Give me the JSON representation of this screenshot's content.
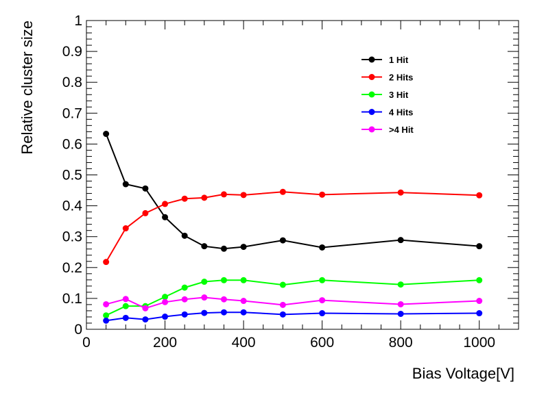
{
  "chart_data": {
    "type": "line",
    "title": "",
    "xlabel": "Bias Voltage[V]",
    "ylabel": "Relative cluster size",
    "xlim": [
      0,
      1100
    ],
    "ylim": [
      0,
      1
    ],
    "x_ticks": [
      0,
      200,
      400,
      600,
      800,
      1000
    ],
    "x_tick_labels": [
      "0",
      "200",
      "400",
      "600",
      "800",
      "1000"
    ],
    "y_ticks": [
      0,
      0.1,
      0.2,
      0.3,
      0.4,
      0.5,
      0.6,
      0.7,
      0.8,
      0.9,
      1
    ],
    "y_tick_labels": [
      "0",
      "0.1",
      "0.2",
      "0.3",
      "0.4",
      "0.5",
      "0.6",
      "0.7",
      "0.8",
      "0.9",
      "1"
    ],
    "grid": false,
    "legend_position": "top-right",
    "x": [
      50,
      100,
      150,
      200,
      250,
      300,
      350,
      400,
      500,
      600,
      800,
      1000
    ],
    "series": [
      {
        "name": "1 Hit",
        "color": "#000000",
        "values": [
          0.633,
          0.47,
          0.456,
          0.363,
          0.303,
          0.269,
          0.261,
          0.267,
          0.288,
          0.265,
          0.289,
          0.269
        ]
      },
      {
        "name": "2 Hits",
        "color": "#ff0000",
        "values": [
          0.218,
          0.327,
          0.376,
          0.406,
          0.423,
          0.426,
          0.437,
          0.435,
          0.445,
          0.436,
          0.443,
          0.434
        ]
      },
      {
        "name": "3 Hit",
        "color": "#00ff00",
        "values": [
          0.045,
          0.075,
          0.075,
          0.105,
          0.135,
          0.154,
          0.159,
          0.159,
          0.144,
          0.159,
          0.145,
          0.159
        ]
      },
      {
        "name": "4 Hits",
        "color": "#0000ff",
        "values": [
          0.028,
          0.037,
          0.032,
          0.041,
          0.048,
          0.053,
          0.055,
          0.055,
          0.048,
          0.052,
          0.05,
          0.052
        ]
      },
      {
        "name": ">4 Hit",
        "color": "#ff00ff",
        "values": [
          0.081,
          0.098,
          0.068,
          0.088,
          0.097,
          0.103,
          0.097,
          0.092,
          0.079,
          0.094,
          0.081,
          0.092
        ]
      }
    ]
  }
}
